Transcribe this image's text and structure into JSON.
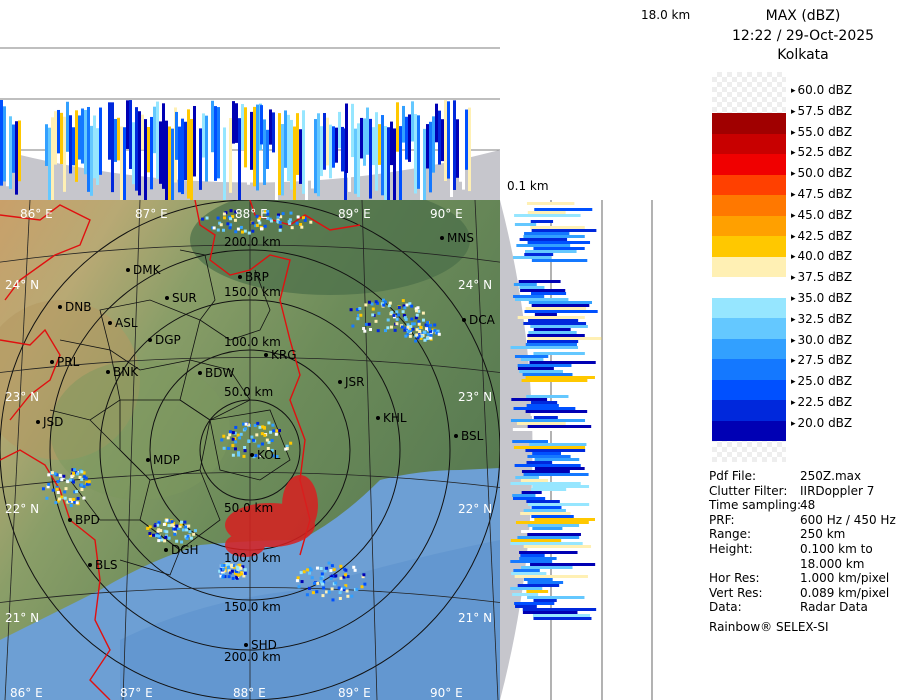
{
  "header": {
    "title": "MAX (dBZ)",
    "datetime": "12:22 / 29-Oct-2025",
    "station": "Kolkata"
  },
  "profile_labels": {
    "top_height": "18.0 km",
    "bottom_height": "0.1 km"
  },
  "legend": {
    "levels": [
      "60.0 dBZ",
      "57.5 dBZ",
      "55.0 dBZ",
      "52.5 dBZ",
      "50.0 dBZ",
      "47.5 dBZ",
      "45.0 dBZ",
      "42.5 dBZ",
      "40.0 dBZ",
      "37.5 dBZ",
      "35.0 dBZ",
      "32.5 dBZ",
      "30.0 dBZ",
      "27.5 dBZ",
      "25.0 dBZ",
      "22.5 dBZ",
      "20.0 dBZ"
    ],
    "colors": [
      "#a00000",
      "#c80000",
      "#f00000",
      "#ff4000",
      "#ff7800",
      "#ffa000",
      "#ffc800",
      "#fff0b4",
      "#ffffff",
      "#96e6ff",
      "#64c8ff",
      "#32a0ff",
      "#1478ff",
      "#0050ff",
      "#0028dc",
      "#0000b4"
    ]
  },
  "info": [
    {
      "key": "Pdf File:",
      "value": "250Z.max"
    },
    {
      "key": "Clutter Filter:",
      "value": "IIRDoppler 7"
    },
    {
      "key": "Time sampling:",
      "value": "48"
    },
    {
      "key": "PRF:",
      "value": "600 Hz / 450 Hz"
    },
    {
      "key": "Range:",
      "value": "250 km"
    },
    {
      "key": "Height:",
      "value": "0.100 km to"
    },
    {
      "key": "",
      "value": "18.000 km"
    },
    {
      "key": "Hor Res:",
      "value": "1.000 km/pixel"
    },
    {
      "key": "Vert Res:",
      "value": "0.089 km/pixel"
    },
    {
      "key": "Data:",
      "value": "Radar Data"
    }
  ],
  "footer": "Rainbow® SELEX-SI",
  "map": {
    "lon_labels": [
      "86° E",
      "87° E",
      "88° E",
      "89° E",
      "90° E"
    ],
    "lat_labels": [
      "24° N",
      "23° N",
      "22° N",
      "21° N"
    ],
    "range_rings": [
      "50.0 km",
      "100.0 km",
      "150.0 km",
      "200.0 km"
    ],
    "stations": [
      "MNS",
      "DMK",
      "BRP",
      "DNB",
      "SUR",
      "ASL",
      "DGP",
      "DCA",
      "KRG",
      "PRL",
      "BNK",
      "BDW",
      "JSR",
      "KHL",
      "JSD",
      "BSL",
      "MDP",
      "KOL",
      "BPD",
      "DGH",
      "BLS",
      "SHD"
    ]
  }
}
